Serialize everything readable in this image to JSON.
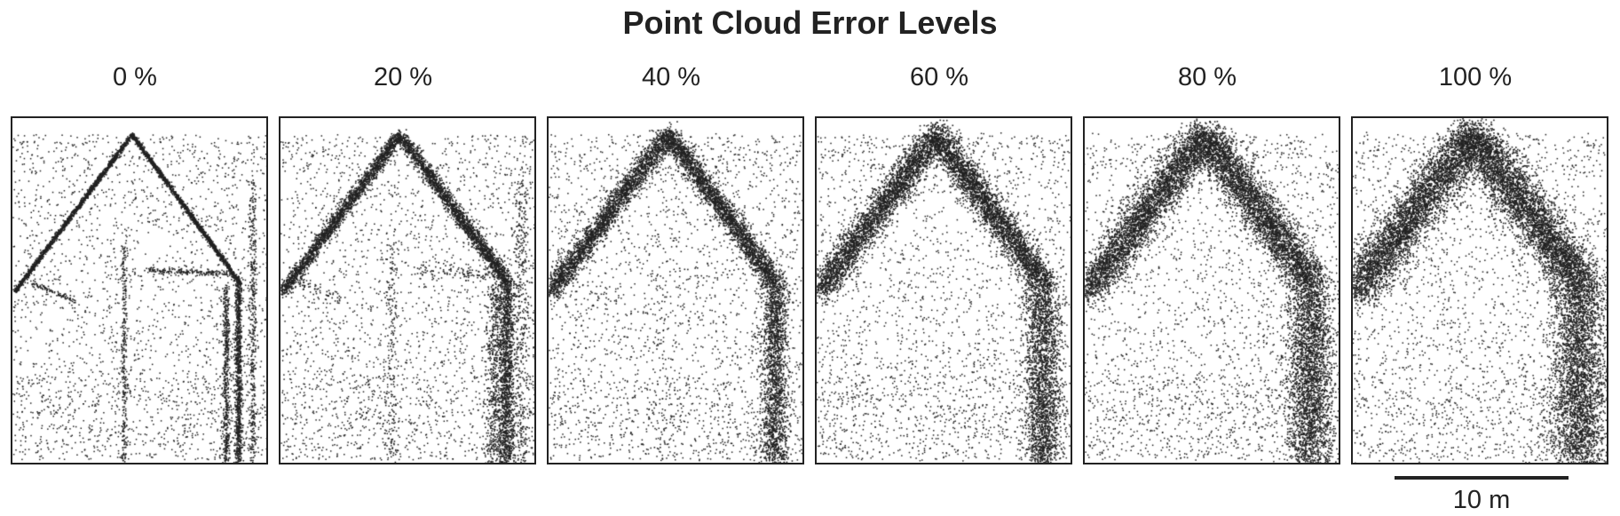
{
  "figure": {
    "title": "Point Cloud Error Levels"
  },
  "panels": [
    {
      "label": "0 %",
      "error_percent": 0
    },
    {
      "label": "20 %",
      "error_percent": 20
    },
    {
      "label": "40 %",
      "error_percent": 40
    },
    {
      "label": "60 %",
      "error_percent": 60
    },
    {
      "label": "80 %",
      "error_percent": 80
    },
    {
      "label": "100 %",
      "error_percent": 100
    }
  ],
  "scale_bar": {
    "label": "10 m"
  },
  "colors": {
    "points": "#222222",
    "frame": "#222222",
    "background": "#ffffff"
  }
}
